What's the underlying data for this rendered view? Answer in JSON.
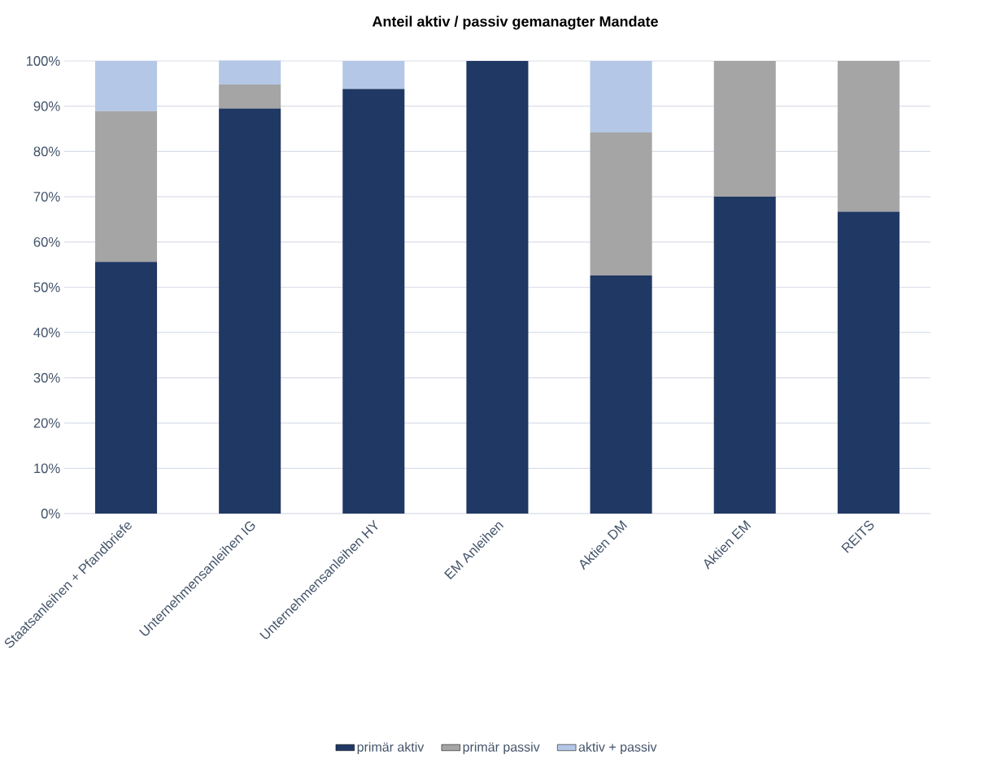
{
  "chart_data": {
    "type": "bar",
    "title": "Anteil aktiv / passiv gemanagter Mandate",
    "categories": [
      "Staatsanleihen + Pfandbriefe",
      "Unternehmensanleihen IG",
      "Unternehmensanleihen HY",
      "EM Anleihen",
      "Aktien DM",
      "Aktien EM",
      "REITS"
    ],
    "stacked": true,
    "series": [
      {
        "name": "primär aktiv",
        "color": "#203864",
        "values": [
          55.6,
          89.5,
          93.8,
          100,
          52.6,
          70,
          66.7
        ]
      },
      {
        "name": "primär passiv",
        "color": "#a5a5a5",
        "values": [
          33.3,
          5.3,
          0,
          0,
          31.6,
          30,
          33.3
        ]
      },
      {
        "name": "aktiv + passiv",
        "color": "#b4c7e7",
        "values": [
          11.1,
          5.3,
          6.2,
          0,
          15.8,
          0,
          0
        ]
      }
    ],
    "ylim": [
      0,
      100
    ],
    "yticks": [
      {
        "value": 0,
        "label": "0%"
      },
      {
        "value": 10,
        "label": "10%"
      },
      {
        "value": 20,
        "label": "20%"
      },
      {
        "value": 30,
        "label": "30%"
      },
      {
        "value": 40,
        "label": "40%"
      },
      {
        "value": 50,
        "label": "50%"
      },
      {
        "value": 60,
        "label": "60%"
      },
      {
        "value": 70,
        "label": "70%"
      },
      {
        "value": 80,
        "label": "80%"
      },
      {
        "value": 90,
        "label": "90%"
      },
      {
        "value": 100,
        "label": "100%"
      }
    ],
    "grid": "y",
    "legend": "bottom"
  }
}
